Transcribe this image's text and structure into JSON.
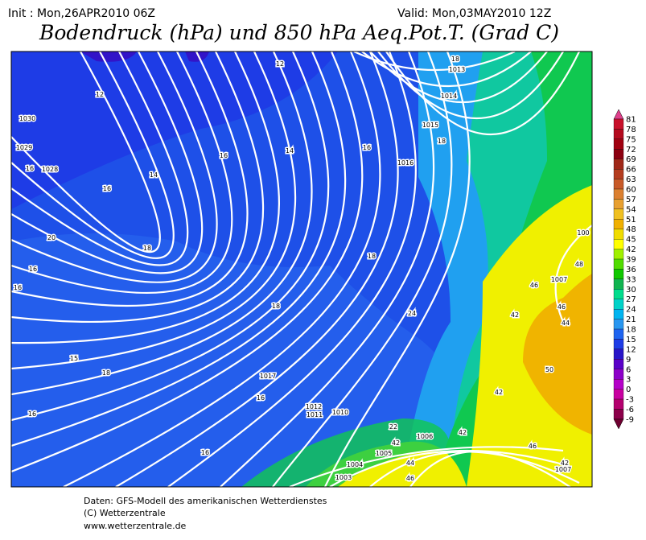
{
  "header": {
    "init": "Init : Mon,26APR2010 06Z",
    "valid": "Valid: Mon,03MAY2010 12Z",
    "title": "Bodendruck (hPa) und 850 hPa Aeq.Pot.T. (Grad C)"
  },
  "map": {
    "isobar_labels": [
      "1030",
      "1029",
      "1028",
      "1013",
      "1014",
      "1015",
      "1016",
      "1017",
      "1012",
      "1011",
      "1010",
      "1006",
      "1005",
      "1004",
      "1003",
      "1007",
      "1007",
      "100"
    ],
    "temp_labels": [
      "12",
      "16",
      "14",
      "16",
      "18",
      "14",
      "16",
      "16",
      "18",
      "20",
      "16",
      "16",
      "18",
      "18",
      "24",
      "18",
      "15",
      "16",
      "16",
      "16",
      "22",
      "42",
      "44",
      "46",
      "42",
      "46",
      "48",
      "46",
      "44",
      "42",
      "50",
      "42",
      "46",
      "42",
      "12",
      "18"
    ]
  },
  "colorbar": {
    "labels": [
      81,
      78,
      75,
      72,
      69,
      66,
      63,
      60,
      57,
      54,
      51,
      48,
      45,
      42,
      39,
      36,
      33,
      30,
      27,
      24,
      21,
      18,
      15,
      12,
      9,
      6,
      3,
      0,
      -3,
      -6,
      -9
    ],
    "colors": [
      "#e0408c",
      "#c8102a",
      "#b40a1e",
      "#a00010",
      "#8c0010",
      "#a02818",
      "#b43c1e",
      "#c85a28",
      "#dc8030",
      "#e8a030",
      "#f0c020",
      "#f0b000",
      "#f0dc00",
      "#ffff00",
      "#a0f000",
      "#50dc00",
      "#10c800",
      "#10b450",
      "#00dc8c",
      "#00d2c8",
      "#00b4f0",
      "#2896f0",
      "#1e64f0",
      "#1e3ce6",
      "#2814c8",
      "#5a00c8",
      "#8c00c8",
      "#b400c8",
      "#c800a0",
      "#b4006e",
      "#8c004a",
      "#6e0030"
    ]
  },
  "footer": {
    "line1": "Daten: GFS-Modell des amerikanischen Wetterdienstes",
    "line2": "(C) Wetterzentrale",
    "line3": "www.wetterzentrale.de"
  }
}
